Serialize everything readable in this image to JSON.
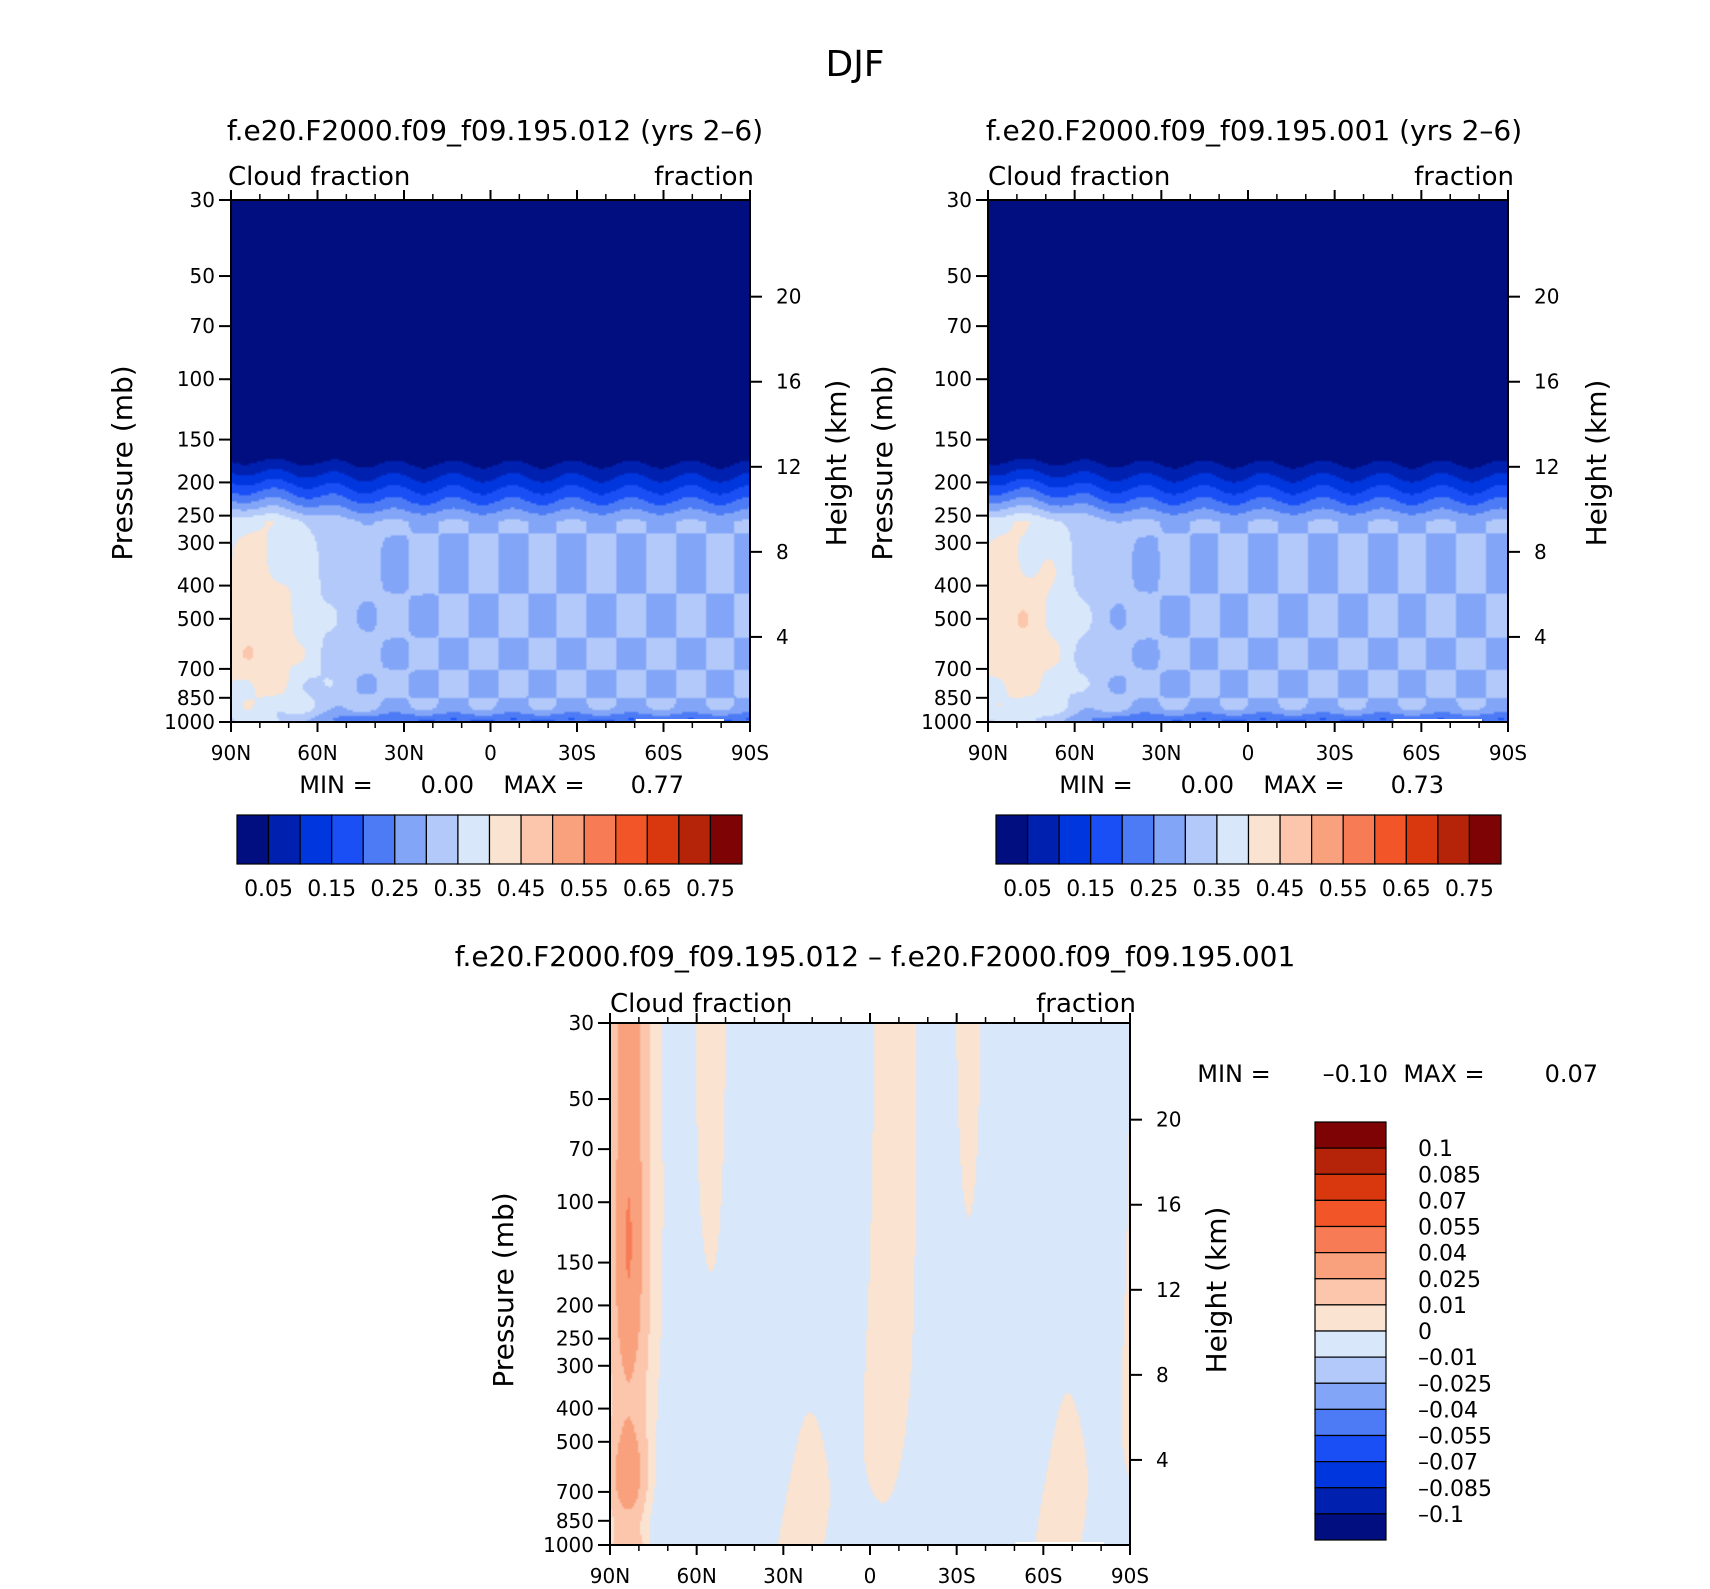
{
  "figure": {
    "title": "DJF",
    "min_label": "MIN =",
    "max_label": "MAX ="
  },
  "chart_data": [
    {
      "type": "heatmap",
      "title": "f.e20.F2000.f09_f09.195.012 (yrs 2–6)",
      "left_subtitle": "Cloud fraction",
      "right_subtitle": "fraction",
      "ylabel": "Pressure (mb)",
      "ylabel_right": "Height (km)",
      "x_ticks": [
        "90N",
        "60N",
        "30N",
        "0",
        "30S",
        "60S",
        "90S"
      ],
      "y_ticks": [
        30,
        50,
        70,
        100,
        150,
        200,
        250,
        300,
        400,
        500,
        700,
        850,
        1000
      ],
      "y_ticks_right": [
        20,
        16,
        12,
        8,
        4
      ],
      "min": "0.00",
      "max": "0.77",
      "colorbar_labels": [
        "0.05",
        "0.15",
        "0.25",
        "0.35",
        "0.45",
        "0.55",
        "0.65",
        "0.75"
      ],
      "colors": [
        "#000e7f",
        "#0021b0",
        "#0036dd",
        "#1a4ff5",
        "#4c7bf5",
        "#82a5f8",
        "#b2c9fa",
        "#d8e7fa",
        "#fbe3d1",
        "#fbc6ac",
        "#f9a07d",
        "#f77c55",
        "#f25628",
        "#d9370d",
        "#b52408",
        "#7e0305"
      ]
    },
    {
      "type": "heatmap",
      "title": "f.e20.F2000.f09_f09.195.001 (yrs 2–6)",
      "left_subtitle": "Cloud fraction",
      "right_subtitle": "fraction",
      "ylabel": "Pressure (mb)",
      "ylabel_right": "Height (km)",
      "x_ticks": [
        "90N",
        "60N",
        "30N",
        "0",
        "30S",
        "60S",
        "90S"
      ],
      "y_ticks": [
        30,
        50,
        70,
        100,
        150,
        200,
        250,
        300,
        400,
        500,
        700,
        850,
        1000
      ],
      "y_ticks_right": [
        20,
        16,
        12,
        8,
        4
      ],
      "min": "0.00",
      "max": "0.73",
      "colorbar_labels": [
        "0.05",
        "0.15",
        "0.25",
        "0.35",
        "0.45",
        "0.55",
        "0.65",
        "0.75"
      ],
      "colors": [
        "#000e7f",
        "#0021b0",
        "#0036dd",
        "#1a4ff5",
        "#4c7bf5",
        "#82a5f8",
        "#b2c9fa",
        "#d8e7fa",
        "#fbe3d1",
        "#fbc6ac",
        "#f9a07d",
        "#f77c55",
        "#f25628",
        "#d9370d",
        "#b52408",
        "#7e0305"
      ]
    },
    {
      "type": "heatmap",
      "title": "f.e20.F2000.f09_f09.195.012 – f.e20.F2000.f09_f09.195.001",
      "left_subtitle": "Cloud fraction",
      "right_subtitle": "fraction",
      "ylabel": "Pressure (mb)",
      "ylabel_right": "Height (km)",
      "x_ticks": [
        "90N",
        "60N",
        "30N",
        "0",
        "30S",
        "60S",
        "90S"
      ],
      "y_ticks": [
        30,
        50,
        70,
        100,
        150,
        200,
        250,
        300,
        400,
        500,
        700,
        850,
        1000
      ],
      "y_ticks_right": [
        20,
        16,
        12,
        8,
        4
      ],
      "min": "–0.10",
      "max": "0.07",
      "colorbar_labels": [
        "0.1",
        "0.085",
        "0.07",
        "0.055",
        "0.04",
        "0.025",
        "0.01",
        "0",
        "–0.01",
        "–0.025",
        "–0.04",
        "–0.055",
        "–0.07",
        "–0.085",
        "–0.1"
      ],
      "colors": [
        "#7e0305",
        "#b52408",
        "#d9370d",
        "#f25628",
        "#f77c55",
        "#f9a07d",
        "#fbc6ac",
        "#fbe3d1",
        "#d8e7fa",
        "#b2c9fa",
        "#82a5f8",
        "#4c7bf5",
        "#1a4ff5",
        "#0036dd",
        "#0021b0",
        "#000e7f"
      ]
    }
  ]
}
